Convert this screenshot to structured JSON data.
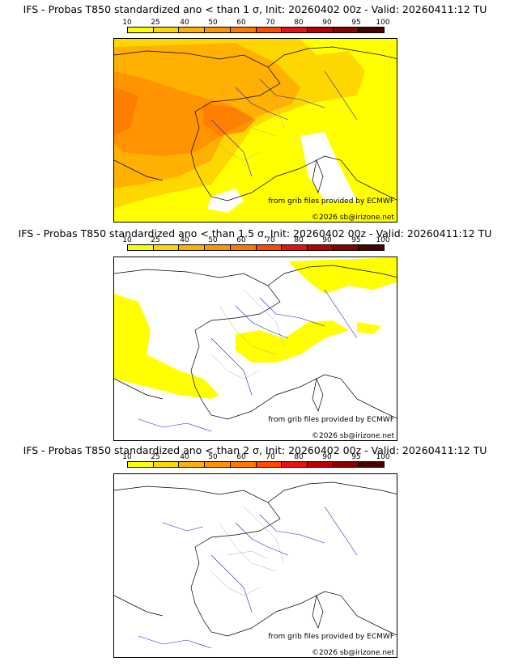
{
  "panels": [
    {
      "title": "IFS - Probas T850  standardized ano < than 1 σ, Init: 20260402 00z - Valid: 20260411:12 TU",
      "threshold_sigma": 1
    },
    {
      "title": "IFS - Probas T850  standardized ano < than 1.5 σ, Init: 20260402 00z - Valid: 20260411:12 TU",
      "threshold_sigma": 1.5
    },
    {
      "title": "IFS - Probas T850  standardized ano < than 2 σ, Init: 20260402 00z - Valid: 20260411:12 TU",
      "threshold_sigma": 2
    }
  ],
  "scale": {
    "labels": [
      "10",
      "25",
      "40",
      "50",
      "60",
      "70",
      "80",
      "90",
      "95",
      "100"
    ],
    "colors": [
      "#ffff00",
      "#ffd700",
      "#ffb000",
      "#ff9400",
      "#ff7800",
      "#ff4a00",
      "#e81010",
      "#b80000",
      "#880000",
      "#480000"
    ]
  },
  "credits": {
    "source": "from grib files provided by ECMWF",
    "copyright": "©2026 sb@irizone.net"
  },
  "colors": {
    "land_border": "#000000",
    "river": "#2020cc",
    "region_border": "#999999"
  }
}
